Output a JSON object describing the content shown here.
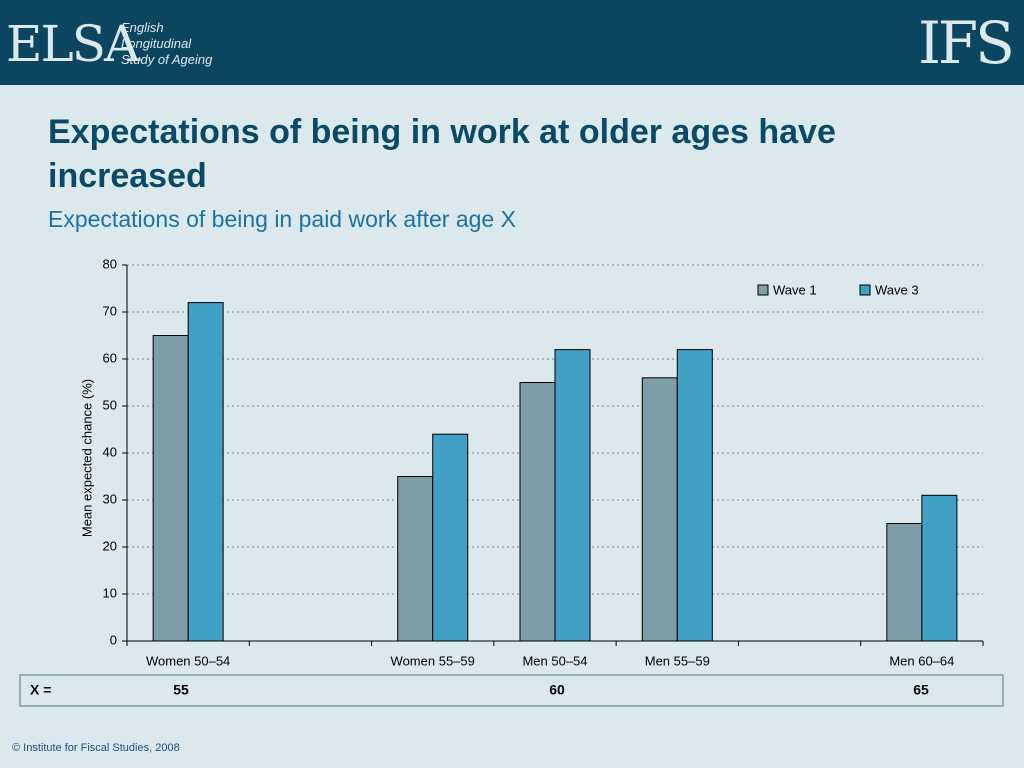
{
  "header": {
    "logo": "ELSA",
    "logo_lines": [
      "English",
      "Longitudinal",
      "Study of Ageing"
    ],
    "brand": "IFS"
  },
  "chart_data": {
    "type": "bar",
    "title": "Expectations of being in work at older ages have increased",
    "subtitle": "Expectations of being in paid work after age X",
    "y_label": "Mean expected chance (%)",
    "categories": [
      "Women 50–54",
      null,
      "Women 55–59",
      "Men 50–54",
      "Men 55–59",
      null,
      "Men 60–64"
    ],
    "series": [
      {
        "name": "Wave 1",
        "color": "#7f9ea9",
        "values": [
          65,
          null,
          35,
          55,
          56,
          null,
          25
        ]
      },
      {
        "name": "Wave 3",
        "color": "#429fc5",
        "values": [
          72,
          null,
          44,
          62,
          62,
          null,
          31
        ]
      }
    ],
    "ylim": [
      0,
      80
    ],
    "yticks": [
      0,
      10,
      20,
      30,
      40,
      50,
      60,
      70,
      80
    ],
    "grid": true,
    "legend": "top-right"
  },
  "x_row": {
    "label": "X =",
    "values": [
      "55",
      "60",
      "65"
    ]
  },
  "footer": "© Institute for Fiscal Studies, 2008"
}
